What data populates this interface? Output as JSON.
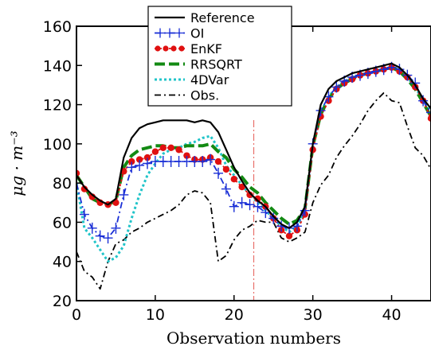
{
  "chart_data": {
    "type": "line",
    "xlabel": "Observation numbers",
    "ylabel": "μg · m⁻³",
    "xlim": [
      0,
      45
    ],
    "ylim": [
      20,
      160
    ],
    "xticks": [
      0,
      10,
      20,
      30,
      40
    ],
    "yticks": [
      20,
      40,
      60,
      80,
      100,
      120,
      140,
      160
    ],
    "grid": false,
    "legend_position": "top-center",
    "vline": {
      "x": 22.5,
      "color": "#e8706a",
      "style": "dash-dot"
    },
    "x": [
      0,
      1,
      2,
      3,
      4,
      5,
      6,
      7,
      8,
      9,
      10,
      11,
      12,
      13,
      14,
      15,
      16,
      17,
      18,
      19,
      20,
      21,
      22,
      23,
      24,
      25,
      26,
      27,
      28,
      29,
      30,
      31,
      32,
      33,
      34,
      35,
      36,
      37,
      38,
      39,
      40,
      41,
      42,
      43,
      44,
      45
    ],
    "series": [
      {
        "name": "Reference",
        "color": "#000000",
        "style": "solid",
        "marker": "none",
        "values": [
          84,
          78,
          74,
          71,
          69,
          72,
          93,
          103,
          108,
          110,
          111,
          112,
          112,
          112,
          112,
          111,
          112,
          111,
          106,
          97,
          88,
          81,
          75,
          71,
          68,
          63,
          59,
          57,
          60,
          68,
          100,
          120,
          128,
          132,
          134,
          136,
          137,
          138,
          139,
          140,
          141,
          139,
          135,
          130,
          123,
          118
        ]
      },
      {
        "name": "OI",
        "color": "#1a2fd6",
        "style": "dashdot",
        "marker": "plus",
        "values": [
          80,
          64,
          57,
          53,
          52,
          57,
          74,
          88,
          89,
          90,
          91,
          91,
          91,
          91,
          91,
          91,
          91,
          92,
          85,
          77,
          68,
          70,
          69,
          68,
          65,
          62,
          58,
          57,
          58,
          66,
          100,
          117,
          124,
          129,
          132,
          134,
          135,
          136,
          137,
          138,
          139,
          138,
          135,
          131,
          122,
          116
        ]
      },
      {
        "name": "EnKF",
        "color": "#e01010",
        "style": "dotted",
        "marker": "circle",
        "values": [
          85,
          77,
          73,
          70,
          69,
          70,
          86,
          91,
          92,
          93,
          96,
          98,
          98,
          97,
          94,
          92,
          92,
          93,
          91,
          87,
          82,
          78,
          74,
          72,
          68,
          62,
          56,
          53,
          56,
          64,
          97,
          114,
          122,
          128,
          131,
          133,
          135,
          136,
          137,
          138,
          139,
          137,
          134,
          129,
          122,
          113
        ]
      },
      {
        "name": "RRSQRT",
        "color": "#138a13",
        "style": "dashed",
        "marker": "none",
        "values": [
          84,
          78,
          72,
          70,
          69,
          71,
          88,
          94,
          97,
          98,
          99,
          99,
          98,
          98,
          99,
          99,
          99,
          100,
          96,
          93,
          87,
          83,
          78,
          75,
          70,
          66,
          62,
          59,
          61,
          67,
          99,
          115,
          123,
          128,
          131,
          133,
          135,
          136,
          137,
          138,
          139,
          137,
          133,
          128,
          121,
          114
        ]
      },
      {
        "name": "4DVar",
        "color": "#21c4c9",
        "style": "dotted",
        "marker": "none",
        "values": [
          80,
          57,
          52,
          46,
          40,
          42,
          48,
          62,
          74,
          84,
          90,
          95,
          97,
          98,
          100,
          101,
          103,
          104,
          98,
          89,
          84,
          79,
          74,
          70,
          66,
          62,
          58,
          55,
          58,
          66,
          98,
          116,
          124,
          129,
          132,
          134,
          135,
          136,
          137,
          138,
          139,
          138,
          134,
          129,
          122,
          116
        ]
      },
      {
        "name": "Obs.",
        "color": "#000000",
        "style": "dashdot",
        "marker": "none",
        "values": [
          45,
          35,
          32,
          26,
          40,
          49,
          51,
          55,
          57,
          60,
          62,
          64,
          66,
          69,
          74,
          76,
          75,
          70,
          40,
          43,
          51,
          56,
          58,
          61,
          60,
          60,
          52,
          50,
          52,
          55,
          70,
          79,
          84,
          93,
          99,
          104,
          110,
          117,
          122,
          126,
          122,
          121,
          109,
          98,
          94,
          87
        ]
      }
    ]
  }
}
